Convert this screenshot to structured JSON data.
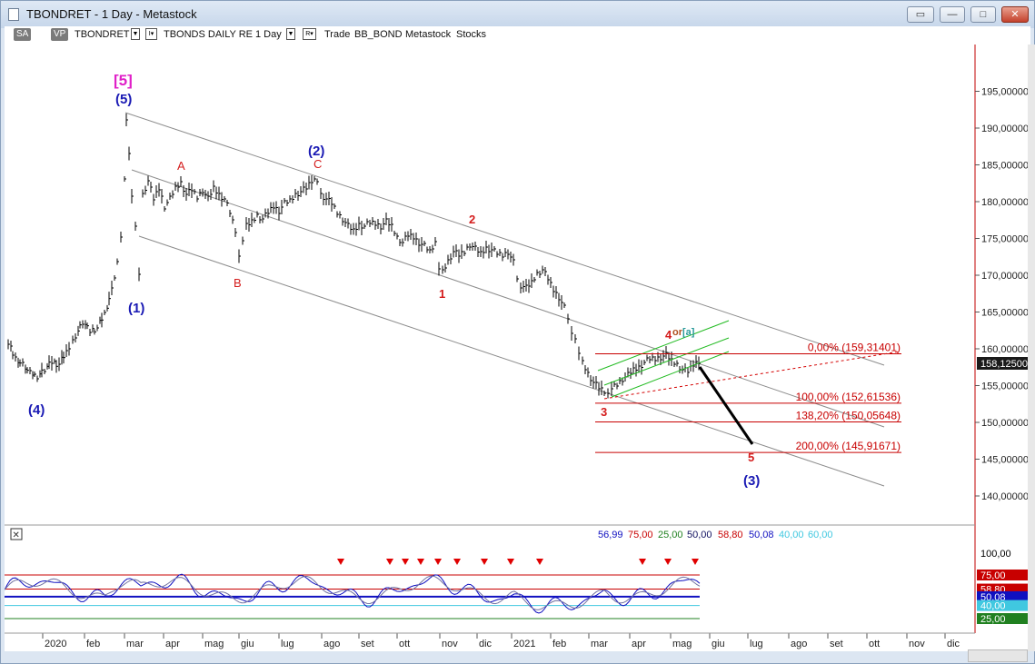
{
  "window": {
    "title": "TBONDRET - 1 Day - Metastock",
    "min_glyph": "▭",
    "minimize_glyph": "—",
    "maximize_glyph": "□",
    "close_glyph": "✕"
  },
  "toolbar": {
    "sa": "SA",
    "vp": "VP",
    "symbol": "TBONDRET",
    "drop1": "▼",
    "drop2": "▼",
    "drop3": "▼",
    "i_glyph": "I▾",
    "r_glyph": "R▾",
    "description": "TBONDS DAILY RE",
    "interval": "1 Day",
    "trade": "Trade",
    "account": "BB_BOND",
    "source": "Metastock",
    "category": "Stocks"
  },
  "colors": {
    "price_bar": "#000000",
    "wave_blue": "#1a1ab4",
    "wave_red": "#d41c1c",
    "magenta": "#e020c8",
    "channel_green": "#22bb22",
    "grid": "#c8d2dc",
    "channel_gray": "#808080",
    "fib_red": "#c80000",
    "osc_blue": "#1010c0"
  },
  "axis": {
    "price_ticks": [
      {
        "price": 195,
        "label": "195,000000"
      },
      {
        "price": 190,
        "label": "190,000000"
      },
      {
        "price": 185,
        "label": "185,000000"
      },
      {
        "price": 180,
        "label": "180,000000"
      },
      {
        "price": 175,
        "label": "175,000000"
      },
      {
        "price": 170,
        "label": "170,000000"
      },
      {
        "price": 165,
        "label": "165,000000"
      },
      {
        "price": 160,
        "label": "160,000000"
      },
      {
        "price": 155,
        "label": "155,000000"
      },
      {
        "price": 150,
        "label": "150,000000"
      },
      {
        "price": 145,
        "label": "145,000000"
      },
      {
        "price": 140,
        "label": "140,000000"
      }
    ],
    "last_price_label": "158,12500",
    "last_price": 158.125,
    "months": [
      "2020",
      "feb",
      "mar",
      "apr",
      "mag",
      "giu",
      "lug",
      "ago",
      "set",
      "ott",
      "nov",
      "dic",
      "2021",
      "feb",
      "mar",
      "apr",
      "mag",
      "giu",
      "lug",
      "ago",
      "set",
      "ott",
      "nov",
      "dic"
    ]
  },
  "wave_labels": {
    "top_bracket": "[5]",
    "w5": "(5)",
    "w4": "(4)",
    "w1": "(1)",
    "w2": "(2)",
    "w3": "(3)",
    "A": "A",
    "B": "B",
    "C": "C",
    "r1": "1",
    "r2": "2",
    "r3": "3",
    "r4": "4",
    "or_text": "or",
    "alt_a": "[a]",
    "r5": "5"
  },
  "fib_levels": [
    {
      "label": "0,00% (159,31401)",
      "price": 159.31401
    },
    {
      "label": "100,00% (152,61536)",
      "price": 152.61536
    },
    {
      "label": "138,20% (150,05648)",
      "price": 150.05648
    },
    {
      "label": "200,00% (145,91671)",
      "price": 145.91671
    }
  ],
  "oscillator": {
    "close_box": "✕",
    "values": [
      {
        "text": "56,99",
        "color": "#1010c0"
      },
      {
        "text": "75,00",
        "color": "#c80000"
      },
      {
        "text": "25,00",
        "color": "#208020"
      },
      {
        "text": "50,00",
        "color": "#101060"
      },
      {
        "text": "58,80",
        "color": "#c80000"
      },
      {
        "text": "50,08",
        "color": "#1010c0"
      },
      {
        "text": "40,00",
        "color": "#40c8e0"
      },
      {
        "text": "60,00",
        "color": "#40c8e0"
      }
    ],
    "axis_labels": [
      {
        "text": "100,00",
        "bg": "#ffffff",
        "fg": "#000000"
      },
      {
        "text": "75,00",
        "bg": "#c80000",
        "fg": "#ffffff"
      },
      {
        "text": "58,80",
        "bg": "#c80000",
        "fg": "#ffffff"
      },
      {
        "text": "50,08",
        "bg": "#1010c0",
        "fg": "#ffffff"
      },
      {
        "text": "40,00",
        "bg": "#40c8e0",
        "fg": "#ffffff"
      },
      {
        "text": "25,00",
        "bg": "#208020",
        "fg": "#ffffff"
      }
    ]
  }
}
